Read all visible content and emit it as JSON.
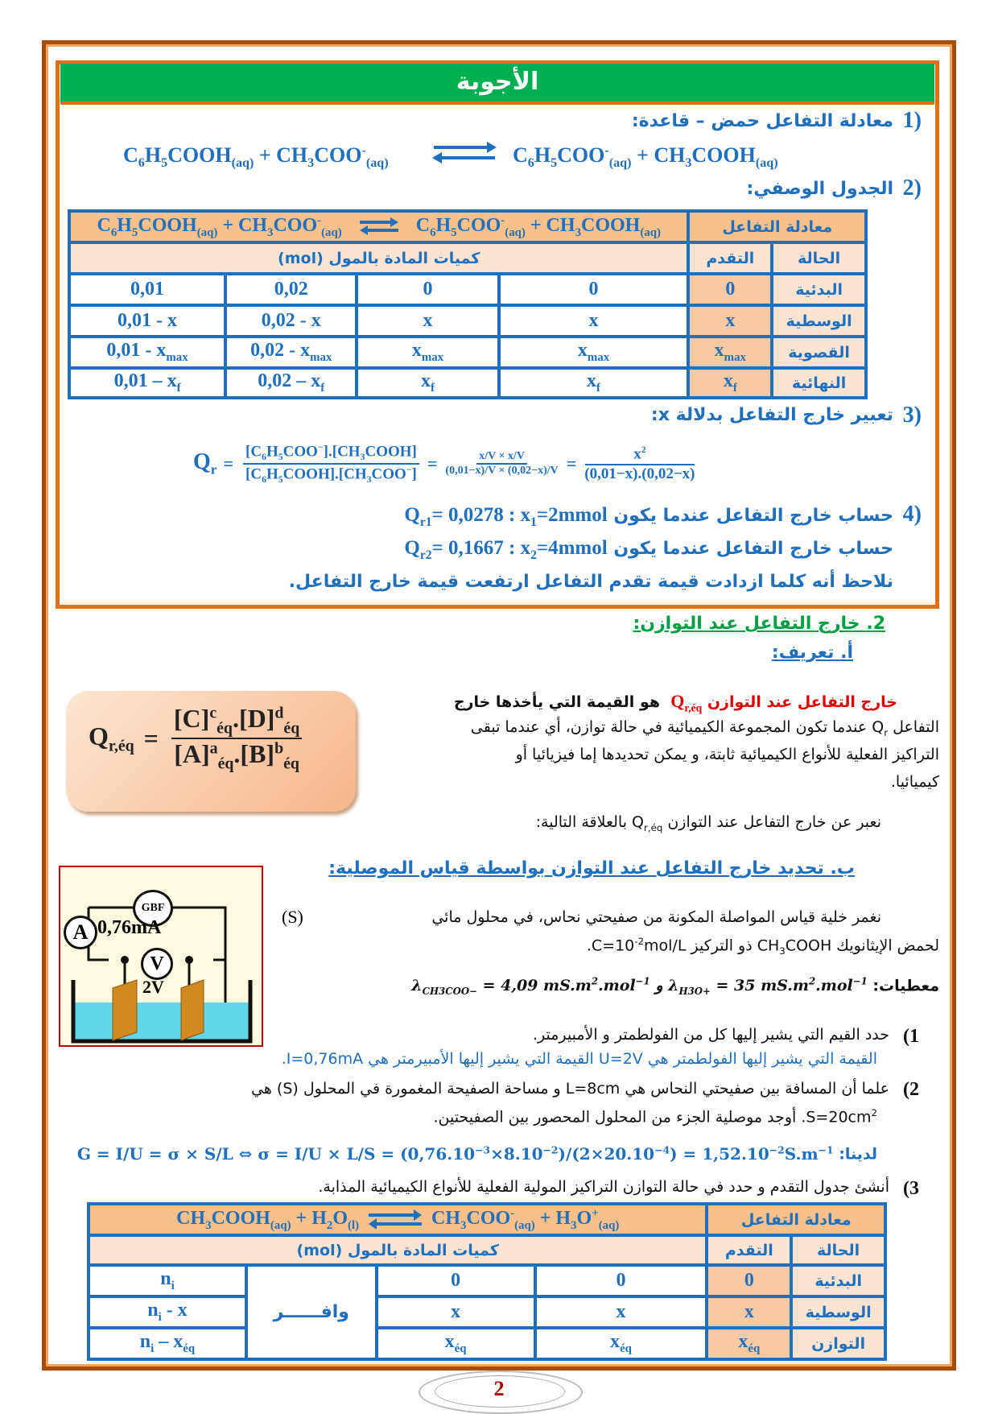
{
  "title": "الأجوبة",
  "answers": {
    "q1": {
      "num": "1)",
      "text": "معادلة التفاعل حمض – قاعدة:",
      "left": "C_{6}H_{5}COOH_{(aq)} + CH_{3}COO^{-}_{(aq)}",
      "right": "C_{6}H_{5}COO^{-}_{(aq)} + CH_{3}COOH_{(aq)}"
    },
    "q2": {
      "num": "2)",
      "text": "الجدول الوصفي:"
    },
    "table1": {
      "eq_label": "معادلة التفاعل",
      "eq_left": "C_{6}H_{5}COOH_{(aq)} + CH_{3}COO^{-}_{(aq)}",
      "eq_right": "C_{6}H_{5}COO^{-}_{(aq)} + CH_{3}COOH_{(aq)}",
      "state_label": "الحالة",
      "advance_label": "التقدم",
      "quantities_label": "كميات المادة بالمول (mol)",
      "rows": [
        {
          "state": "البدئية",
          "adv": "0",
          "c1": "0",
          "c2": "0",
          "c3": "0,02",
          "c4": "0,01"
        },
        {
          "state": "الوسطية",
          "adv": "x",
          "c1": "x",
          "c2": "x",
          "c3": "0,02 - x",
          "c4": "0,01 - x"
        },
        {
          "state": "القصوية",
          "adv": "x_{max}",
          "c1": "x_{max}",
          "c2": "x_{max}",
          "c3": "0,02 - x_{max}",
          "c4": "0,01 - x_{max}"
        },
        {
          "state": "النهائية",
          "adv": "x_{f}",
          "c1": "x_{f}",
          "c2": "x_{f}",
          "c3": "0,02 – x_{f}",
          "c4": "0,01 – x_{f}"
        }
      ]
    },
    "q3": {
      "num": "3)",
      "text": "تعبير خارج التفاعل بدلالة x:",
      "qr": "Q_{r}",
      "num1": "[C_{6}H_{5}COO^{−}].[CH_{3}COOH]",
      "den1": "[C_{6}H_{5}COOH].[CH_{3}COO^{−}]",
      "num2": "x/V × x/V",
      "den2": "(0,01−x)/V × (0,02−x)/V",
      "num3": "x^{2}",
      "den3": "(0,01−x).(0,02−x)"
    },
    "q4": {
      "num": "4)",
      "line1_text": "حساب خارج التفاعل عندما يكون",
      "line1_val": "Q_{r1}= 0,0278 : x_{1}=2mmol",
      "line2_text": "حساب خارج التفاعل عندما يكون",
      "line2_val": "Q_{r2}= 0,1667 : x_{2}=4mmol",
      "conclusion": "نلاحظ أنه كلما ازدادت قيمة تقدم التفاعل ارتفعت قيمة خارج التفاعل."
    }
  },
  "section2": {
    "heading": "2. خارج التفاعل عند التوازن:",
    "sub_a": "أ. تعريف:",
    "def_term": "خارج التفاعل عند التوازن",
    "def_symbol": "Q_{r,éq}",
    "def_line1": "هو القيمة التي يأخذها خارج",
    "def_line2": "التفاعل Q_{r} عندما تكون المجموعة الكيميائية في حالة توازن، أي عندما تبقى",
    "def_line3": "التراكيز الفعلية للأنواع الكيميائية ثابتة، و يمكن تحديدها إما فيزيائيا أو",
    "def_line4": "كيميائيا.",
    "relation_text": "نعبر عن خارج التفاعل عند التوازن Q_{r,éq} بالعلاقة التالية:",
    "formula_lhs": "Q_{r,éq}",
    "formula_num": "[C]^{c}_{éq}.[D]^{d}_{éq}",
    "formula_den": "[A]^{a}_{éq}.[B]^{b}_{éq}",
    "sub_b": "ب. تحديد خارج التفاعل عند التوازن بواسطة قياس الموصلية:",
    "para_line1": "نغمر خلية قياس المواصلة المكونة من صفيحتي نحاس، في محلول مائي",
    "para_s": "(S)",
    "para_line2": "لحمض الإيثانويك CH_{3}COOH ذو التركيز  C=10^{-2}mol/L.",
    "data_label": "معطيات:",
    "data_values": "λ_{H3O+} = 35 mS.m^{2}.mol^{−1} و λ_{CH3COO−} = 4,09 mS.m^{2}.mol^{−1}",
    "circuit": {
      "gbf": "GBF",
      "ammeter": "A",
      "current": "0,76mA",
      "voltmeter": "V",
      "voltage": "2V"
    },
    "items": [
      {
        "num": "1)",
        "question": "حدد القيم التي يشير إليها كل من الفولطمتر و الأمبيرمتر.",
        "answer": "القيمة التي يشير إليها الفولطمتر هي U=2V القيمة التي يشير إليها الأمبيرمتر هي I=0,76mA."
      },
      {
        "num": "2)",
        "question_line1": "علما أن المسافة بين صفيحتي النحاس هي      L=8cm و مساحة الصفيحة المغمورة في المحلول     (S) هي",
        "question_line2": "S=20cm^{2}. أوجد موصلية الجزء من المحلول المحصور بين الصفيحتين.",
        "answer_label": "لدينا:",
        "answer_formula": "G = I/U = σ × S/L ⇔ σ = I/U × L/S = (0,76.10^{−3}×8.10^{−2})/(2×20.10^{−4}) = 1,52.10^{−2}S.m^{−1}"
      },
      {
        "num": "3)",
        "question": "أنشئ جدول التقدم و حدد في حالة التوازن التراكيز المولية الفعلية للأنواع الكيميائية المذابة."
      }
    ],
    "table2": {
      "eq_label": "معادلة التفاعل",
      "eq_left": "CH_{3}COOH_{(aq)} + H_{2}O_{(l)}",
      "eq_right": "CH_{3}COO^{-}_{(aq)} + H_{3}O^{+}_{(aq)}",
      "state_label": "الحالة",
      "advance_label": "التقدم",
      "quantities_label": "كميات المادة بالمول (mol)",
      "excess": "وافــــــر",
      "rows": [
        {
          "state": "البدئية",
          "adv": "0",
          "c1": "0",
          "c2": "0",
          "c4": "n_{i}"
        },
        {
          "state": "الوسطية",
          "adv": "x",
          "c1": "x",
          "c2": "x",
          "c4": "n_{i} - x"
        },
        {
          "state": "التوازن",
          "adv": "x_{éq}",
          "c1": "x_{éq}",
          "c2": "x_{éq}",
          "c4": "n_{i} – x_{éq}"
        }
      ]
    }
  },
  "page_number": "2",
  "colors": {
    "green": "#00b050",
    "orange": "#e2700f",
    "blue": "#1f6fbf",
    "red": "#e00000",
    "page_num": "#b00000"
  }
}
